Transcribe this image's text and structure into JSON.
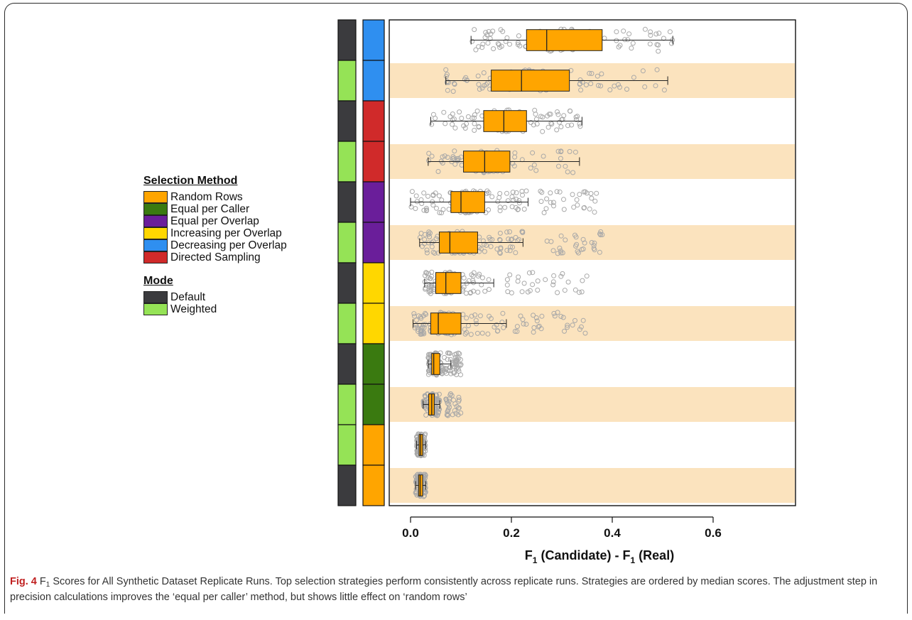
{
  "caption": {
    "label": "Fig. 4",
    "text_before_sub": "F",
    "sub": "1",
    "text": " Scores for All Synthetic Dataset Replicate Runs. Top selection strategies perform consistently across replicate runs. Strategies are ordered by median scores. The adjustment step in precision calculations improves the ‘equal per caller’ method, but shows little effect on ‘random rows’"
  },
  "legend": {
    "selection_title": "Selection Method",
    "selection_items": [
      {
        "label": "Random Rows",
        "color": "#FFA500"
      },
      {
        "label": "Equal per Caller",
        "color": "#3A7A10"
      },
      {
        "label": "Equal per Overlap",
        "color": "#6A1E9A"
      },
      {
        "label": "Increasing per Overlap",
        "color": "#FFD700"
      },
      {
        "label": "Decreasing per Overlap",
        "color": "#2F8FF0"
      },
      {
        "label": "Directed Sampling",
        "color": "#D02A2A"
      }
    ],
    "mode_title": "Mode",
    "mode_items": [
      {
        "label": "Default",
        "color": "#3B3B3E"
      },
      {
        "label": "Weighted",
        "color": "#95E356"
      }
    ]
  },
  "chart_data": {
    "type": "boxplot",
    "orientation": "horizontal",
    "xlabel_main": "F",
    "xlabel_sub_1": "1",
    "xlabel_mid": " (Candidate) - F",
    "xlabel_sub_2": "1",
    "xlabel_end": " (Real)",
    "xlim": [
      -0.05,
      0.75
    ],
    "xticks": [
      0.0,
      0.2,
      0.4,
      0.6
    ],
    "xtick_labels": [
      "0.0",
      "0.2",
      "0.4",
      "0.6"
    ],
    "box_color": "#FFA500",
    "point_color": "#A8A8A8",
    "band_color": "#FBE3BE",
    "rows": [
      {
        "mode": "Default",
        "method": "Decreasing per Overlap",
        "min": 0.12,
        "q1": 0.23,
        "median": 0.27,
        "q3": 0.38,
        "max": 0.52
      },
      {
        "mode": "Weighted",
        "method": "Decreasing per Overlap",
        "min": 0.07,
        "q1": 0.16,
        "median": 0.22,
        "q3": 0.315,
        "max": 0.51
      },
      {
        "mode": "Default",
        "method": "Directed Sampling",
        "min": 0.04,
        "q1": 0.145,
        "median": 0.185,
        "q3": 0.23,
        "max": 0.34
      },
      {
        "mode": "Weighted",
        "method": "Directed Sampling",
        "min": 0.035,
        "q1": 0.105,
        "median": 0.147,
        "q3": 0.197,
        "max": 0.335
      },
      {
        "mode": "Default",
        "method": "Equal per Overlap",
        "min": 0.0,
        "q1": 0.08,
        "median": 0.1,
        "q3": 0.147,
        "max": 0.233,
        "outliers_range": [
          0.25,
          0.37
        ]
      },
      {
        "mode": "Weighted",
        "method": "Equal per Overlap",
        "min": 0.018,
        "q1": 0.057,
        "median": 0.078,
        "q3": 0.133,
        "max": 0.223,
        "outliers_range": [
          0.27,
          0.38
        ]
      },
      {
        "mode": "Default",
        "method": "Increasing per Overlap",
        "min": 0.028,
        "q1": 0.05,
        "median": 0.07,
        "q3": 0.1,
        "max": 0.165,
        "outliers_range": [
          0.18,
          0.35
        ]
      },
      {
        "mode": "Weighted",
        "method": "Increasing per Overlap",
        "min": 0.005,
        "q1": 0.04,
        "median": 0.055,
        "q3": 0.1,
        "max": 0.19,
        "outliers_range": [
          0.2,
          0.35
        ]
      },
      {
        "mode": "Default",
        "method": "Equal per Caller",
        "min": 0.035,
        "q1": 0.042,
        "median": 0.046,
        "q3": 0.058,
        "max": 0.08,
        "outliers_range": [
          0.085,
          0.1
        ]
      },
      {
        "mode": "Weighted",
        "method": "Equal per Caller",
        "min": 0.025,
        "q1": 0.036,
        "median": 0.042,
        "q3": 0.047,
        "max": 0.058,
        "outliers_range": [
          0.07,
          0.1
        ]
      },
      {
        "mode": "Weighted",
        "method": "Random Rows",
        "min": 0.012,
        "q1": 0.017,
        "median": 0.02,
        "q3": 0.024,
        "max": 0.03
      },
      {
        "mode": "Default",
        "method": "Random Rows",
        "min": 0.01,
        "q1": 0.016,
        "median": 0.019,
        "q3": 0.024,
        "max": 0.03
      }
    ]
  }
}
